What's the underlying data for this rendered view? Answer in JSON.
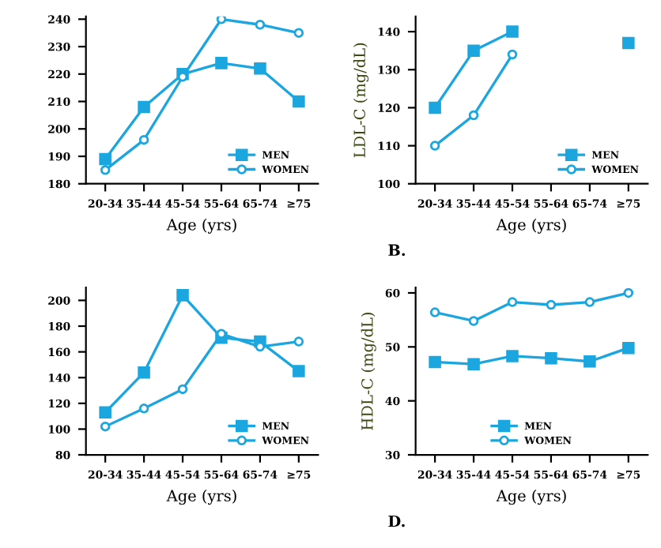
{
  "chart_data": [
    {
      "type": "line",
      "categories": [
        "20-34",
        "35-44",
        "45-54",
        "55-64",
        "65-74",
        "≥75"
      ],
      "xlabel": "Age (yrs)",
      "ylim": [
        180,
        241
      ],
      "yticks": [
        180,
        190,
        200,
        210,
        220,
        230,
        240
      ],
      "legend": "lower right",
      "grid": false,
      "series": [
        {
          "name": "MEN",
          "color": "#1ba6df",
          "marker": "square",
          "values": [
            189,
            208,
            220,
            224,
            222,
            210
          ]
        },
        {
          "name": "WOMEN",
          "color": "#1ba6df",
          "marker": "circle",
          "values": [
            185,
            196,
            219,
            240,
            238,
            235
          ]
        }
      ]
    },
    {
      "type": "line",
      "categories": [
        "20-34",
        "35-44",
        "45-54",
        "55-64",
        "65-74",
        "≥75"
      ],
      "xlabel": "Age (yrs)",
      "ylabel": "LDL-C (mg/dL)",
      "ylim": [
        100,
        144
      ],
      "yticks": [
        100,
        110,
        120,
        130,
        140
      ],
      "legend": "lower right",
      "grid": false,
      "annotations": [
        "B."
      ],
      "series": [
        {
          "name": "MEN",
          "color": "#1ba6df",
          "marker": "square",
          "values": [
            120,
            135,
            140,
            null,
            null,
            137
          ]
        },
        {
          "name": "WOMEN",
          "color": "#1ba6df",
          "marker": "circle",
          "values": [
            110,
            118,
            134,
            null,
            null,
            null
          ]
        }
      ]
    },
    {
      "type": "line",
      "categories": [
        "20-34",
        "35-44",
        "45-54",
        "55-64",
        "65-74",
        "≥75"
      ],
      "xlabel": "Age (yrs)",
      "ylim": [
        80,
        210
      ],
      "yticks": [
        80,
        100,
        120,
        140,
        160,
        180,
        200
      ],
      "legend": "lower right",
      "grid": false,
      "series": [
        {
          "name": "MEN",
          "color": "#1ba6df",
          "marker": "square",
          "values": [
            113,
            144,
            204,
            171,
            168,
            145
          ]
        },
        {
          "name": "WOMEN",
          "color": "#1ba6df",
          "marker": "circle",
          "values": [
            102,
            116,
            131,
            174,
            164,
            168
          ]
        }
      ]
    },
    {
      "type": "line",
      "categories": [
        "20-34",
        "35-44",
        "45-54",
        "55-64",
        "65-74",
        "≥75"
      ],
      "xlabel": "Age (yrs)",
      "ylabel": "HDL-C (mg/dL)",
      "ylim": [
        30,
        61
      ],
      "yticks": [
        30,
        40,
        50,
        60
      ],
      "legend": "lower center",
      "grid": false,
      "annotations": [
        "D."
      ],
      "series": [
        {
          "name": "MEN",
          "color": "#1ba6df",
          "marker": "square",
          "values": [
            47.2,
            46.8,
            48.3,
            47.9,
            47.3,
            49.8
          ]
        },
        {
          "name": "WOMEN",
          "color": "#1ba6df",
          "marker": "circle",
          "values": [
            56.4,
            54.8,
            58.3,
            57.8,
            58.3,
            60
          ]
        }
      ]
    }
  ]
}
